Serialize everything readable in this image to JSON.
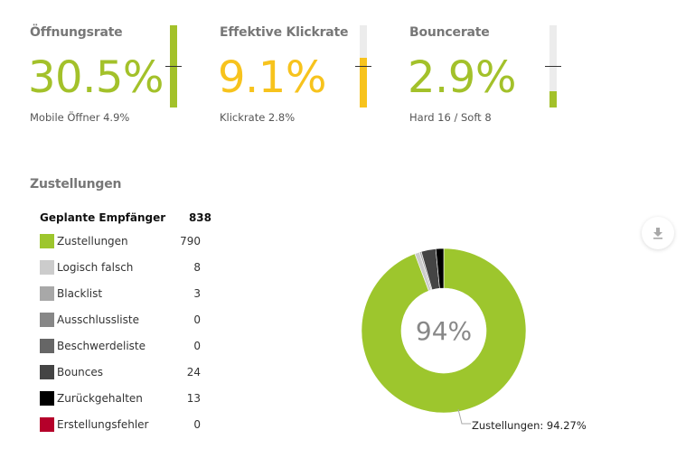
{
  "kpis": [
    {
      "title": "Öffnungsrate",
      "value": "30.5%",
      "sub": "Mobile Öffner 4.9%",
      "color": "#a3c12a",
      "gauge_fill_percent": 100,
      "marker_percent": 50
    },
    {
      "title": "Effektive Klickrate",
      "value": "9.1%",
      "sub": "Klickrate 2.8%",
      "color": "#f7c31d",
      "gauge_fill_percent": 60,
      "marker_percent": 50
    },
    {
      "title": "Bouncerate",
      "value": "2.9%",
      "sub": "Hard 16 / Soft 8",
      "color": "#a3c12a",
      "gauge_fill_percent": 20,
      "marker_percent": 50
    }
  ],
  "deliveries": {
    "title": "Zustellungen",
    "planned_label": "Geplante Empfänger",
    "planned_value": "838",
    "items": [
      {
        "label": "Zustellungen",
        "value": "790",
        "color": "#9dc62d"
      },
      {
        "label": "Logisch falsch",
        "value": "8",
        "color": "#cccccc"
      },
      {
        "label": "Blacklist",
        "value": "3",
        "color": "#a8a8a8"
      },
      {
        "label": "Ausschlussliste",
        "value": "0",
        "color": "#878787"
      },
      {
        "label": "Beschwerdeliste",
        "value": "0",
        "color": "#666666"
      },
      {
        "label": "Bounces",
        "value": "24",
        "color": "#444444"
      },
      {
        "label": "Zurückgehalten",
        "value": "13",
        "color": "#000000"
      },
      {
        "label": "Erstellungsfehler",
        "value": "0",
        "color": "#b5002a"
      }
    ],
    "download_icon": "download-icon"
  },
  "chart_data": {
    "type": "pie",
    "subtype": "donut",
    "title": "Zustellungen",
    "center_label": "94%",
    "categories": [
      "Zustellungen",
      "Logisch falsch",
      "Blacklist",
      "Ausschlussliste",
      "Beschwerdeliste",
      "Bounces",
      "Zurückgehalten",
      "Erstellungsfehler"
    ],
    "values": [
      790,
      8,
      3,
      0,
      0,
      24,
      13,
      0
    ],
    "colors": [
      "#9dc62d",
      "#cccccc",
      "#a8a8a8",
      "#878787",
      "#666666",
      "#444444",
      "#000000",
      "#b5002a"
    ],
    "annotations": [
      "Zustellungen: 94.27%"
    ],
    "total": 838
  }
}
